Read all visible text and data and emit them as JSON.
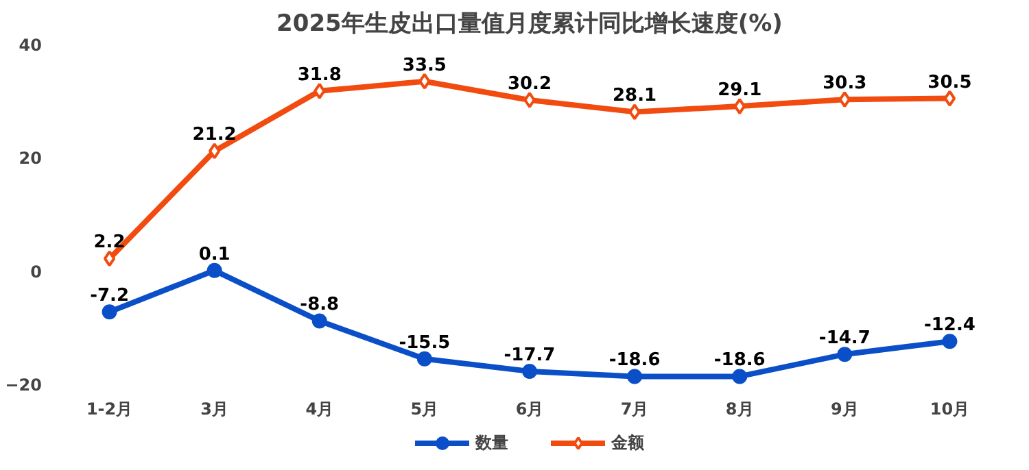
{
  "chart_data": {
    "type": "line",
    "title": "2025年生皮出口量值月度累计同比增长速度(%)",
    "categories": [
      "1-2月",
      "3月",
      "4月",
      "5月",
      "6月",
      "7月",
      "8月",
      "9月",
      "10月"
    ],
    "series": [
      {
        "name": "数量",
        "color": "#0b4fc8",
        "marker": "circle",
        "values": [
          -7.2,
          0.1,
          -8.8,
          -15.5,
          -17.7,
          -18.6,
          -18.6,
          -14.7,
          -12.4
        ]
      },
      {
        "name": "金额",
        "color": "#f24b0f",
        "marker": "diamond",
        "values": [
          2.2,
          21.2,
          31.8,
          33.5,
          30.2,
          28.1,
          29.1,
          30.3,
          30.5
        ]
      }
    ],
    "ylim": [
      -20,
      40
    ],
    "yticks": [
      -20,
      0,
      20,
      40
    ],
    "grid": false,
    "legend": "bottom",
    "data_labels": true,
    "line_style": "solid"
  }
}
